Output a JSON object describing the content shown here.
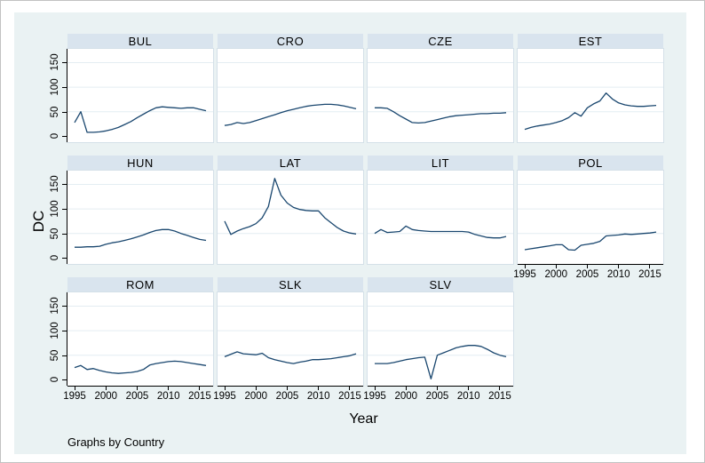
{
  "figure": {
    "ylabel": "DC",
    "xlabel": "Year",
    "footnote": "Graphs by Country",
    "colors": {
      "background": "#eaf2f3",
      "title_bar": "#d9e4ee",
      "line": "#1a476f",
      "grid": "#e4edf2",
      "plot_border": "#d4e0e8",
      "axis": "#000000"
    }
  },
  "chart_data": {
    "type": "line",
    "title": "",
    "xlabel": "Year",
    "ylabel": "DC",
    "legend": "none",
    "grid": "horizontal",
    "ylim": [
      -12,
      178
    ],
    "y_ticks": [
      0,
      50,
      100,
      150
    ],
    "x_ticks": [
      1995,
      2000,
      2005,
      2010,
      2015
    ],
    "rows": [
      [
        "BUL",
        "CRO",
        "CZE",
        "EST"
      ],
      [
        "HUN",
        "LAT",
        "LIT",
        "POL"
      ],
      [
        "ROM",
        "SLK",
        "SLV"
      ]
    ],
    "x": [
      1995,
      1996,
      1997,
      1998,
      1999,
      2000,
      2001,
      2002,
      2003,
      2004,
      2005,
      2006,
      2007,
      2008,
      2009,
      2010,
      2011,
      2012,
      2013,
      2014,
      2015,
      2016
    ],
    "series": [
      {
        "name": "BUL",
        "values": [
          28,
          50,
          8,
          8,
          9,
          11,
          14,
          18,
          24,
          30,
          38,
          45,
          52,
          58,
          60,
          59,
          58,
          57,
          58,
          58,
          55,
          52
        ]
      },
      {
        "name": "CRO",
        "values": [
          22,
          24,
          28,
          26,
          28,
          32,
          36,
          40,
          44,
          48,
          52,
          55,
          58,
          61,
          63,
          64,
          65,
          65,
          64,
          62,
          59,
          56
        ]
      },
      {
        "name": "CZE",
        "values": [
          58,
          58,
          57,
          50,
          42,
          35,
          28,
          27,
          28,
          31,
          34,
          37,
          40,
          42,
          43,
          44,
          45,
          46,
          46,
          47,
          47,
          48
        ]
      },
      {
        "name": "EST",
        "values": [
          14,
          18,
          21,
          23,
          25,
          28,
          32,
          38,
          48,
          41,
          58,
          66,
          72,
          88,
          76,
          68,
          64,
          62,
          61,
          61,
          62,
          63
        ]
      },
      {
        "name": "HUN",
        "values": [
          22,
          22,
          23,
          23,
          24,
          28,
          31,
          33,
          36,
          39,
          43,
          47,
          52,
          56,
          58,
          58,
          55,
          50,
          46,
          42,
          38,
          36
        ]
      },
      {
        "name": "LAT",
        "values": [
          75,
          48,
          55,
          60,
          64,
          70,
          82,
          105,
          162,
          128,
          112,
          103,
          99,
          97,
          96,
          96,
          82,
          72,
          62,
          55,
          51,
          49
        ]
      },
      {
        "name": "LIT",
        "values": [
          50,
          58,
          52,
          53,
          54,
          65,
          58,
          56,
          55,
          54,
          54,
          54,
          54,
          54,
          54,
          53,
          48,
          45,
          42,
          41,
          41,
          44
        ]
      },
      {
        "name": "POL",
        "values": [
          17,
          19,
          21,
          23,
          25,
          27,
          27,
          17,
          16,
          26,
          28,
          30,
          34,
          45,
          46,
          47,
          49,
          48,
          49,
          50,
          51,
          53
        ]
      },
      {
        "name": "ROM",
        "values": [
          25,
          29,
          21,
          23,
          19,
          16,
          14,
          13,
          14,
          15,
          17,
          21,
          30,
          33,
          35,
          37,
          38,
          37,
          35,
          33,
          31,
          29
        ]
      },
      {
        "name": "SLK",
        "values": [
          47,
          52,
          57,
          53,
          52,
          51,
          54,
          45,
          41,
          38,
          35,
          33,
          36,
          38,
          41,
          41,
          42,
          43,
          45,
          47,
          49,
          53
        ]
      },
      {
        "name": "SLV",
        "values": [
          33,
          33,
          33,
          35,
          38,
          41,
          43,
          45,
          46,
          2,
          50,
          55,
          60,
          65,
          68,
          70,
          70,
          68,
          62,
          55,
          50,
          47
        ]
      }
    ]
  }
}
